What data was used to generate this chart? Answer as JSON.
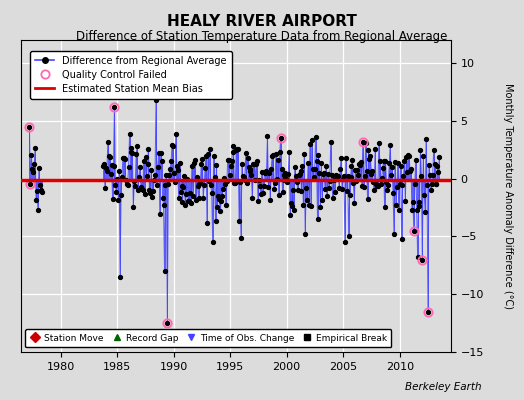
{
  "title": "HEALY RIVER AIRPORT",
  "subtitle": "Difference of Station Temperature Data from Regional Average",
  "ylabel": "Monthly Temperature Anomaly Difference (°C)",
  "xlim": [
    1976.5,
    2014.5
  ],
  "ylim": [
    -15,
    12
  ],
  "yticks": [
    -15,
    -10,
    -5,
    0,
    5,
    10
  ],
  "xticks": [
    1980,
    1985,
    1990,
    1995,
    2000,
    2005,
    2010
  ],
  "mean_bias": -0.1,
  "background_color": "#dcdcdc",
  "plot_bg": "#dcdcdc",
  "line_color": "#4444ff",
  "bias_color": "#dd0000",
  "qc_color": "#ff69b4",
  "title_fontsize": 11,
  "subtitle_fontsize": 8.5,
  "footer_text": "Berkeley Earth",
  "start_year": 1977.0,
  "end_year": 2013.5,
  "num_points": 438,
  "seed": 7,
  "early_gap_start": 1977.0,
  "early_gap_end": 1983.5
}
